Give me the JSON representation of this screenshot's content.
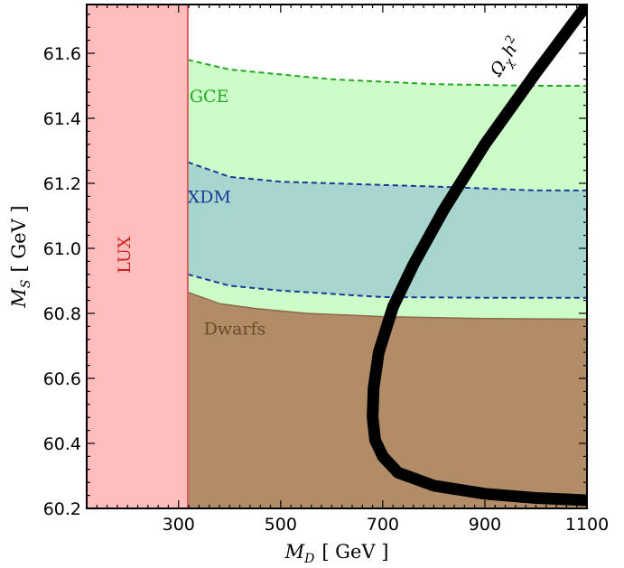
{
  "chart_data": {
    "type": "area",
    "xlabel": "M_D [ GeV ]",
    "ylabel": "M_S [ GeV ]",
    "xlabel_parts": {
      "symbol": "M",
      "sub": "D",
      "unit": "[ GeV ]"
    },
    "ylabel_parts": {
      "symbol": "M",
      "sub": "S",
      "unit": "[ GeV ]"
    },
    "xlim": [
      120,
      1100
    ],
    "ylim": [
      60.2,
      61.75
    ],
    "xticks": [
      {
        "value": 300,
        "label": "300"
      },
      {
        "value": 500,
        "label": "500"
      },
      {
        "value": 700,
        "label": "700"
      },
      {
        "value": 900,
        "label": "900"
      },
      {
        "value": 1100,
        "label": "1100"
      }
    ],
    "yticks": [
      {
        "value": 60.2,
        "label": "60.2"
      },
      {
        "value": 60.4,
        "label": "60.4"
      },
      {
        "value": 60.6,
        "label": "60.6"
      },
      {
        "value": 60.8,
        "label": "60.8"
      },
      {
        "value": 61.0,
        "label": "61.0"
      },
      {
        "value": 61.2,
        "label": "61.2"
      },
      {
        "value": 61.4,
        "label": "61.4"
      },
      {
        "value": 61.6,
        "label": "61.6"
      }
    ],
    "regions": [
      {
        "name": "GCE",
        "fill": "#ccfcc8",
        "edge": "#22aa22",
        "label_at": [
          360,
          61.45
        ],
        "label_color": "#22aa22",
        "lower": [
          [
            318,
            60.86
          ],
          [
            400,
            60.82
          ],
          [
            600,
            60.79
          ],
          [
            800,
            60.78
          ],
          [
            1100,
            60.78
          ]
        ],
        "upper": [
          [
            318,
            61.58
          ],
          [
            400,
            61.55
          ],
          [
            600,
            61.52
          ],
          [
            800,
            61.505
          ],
          [
            1000,
            61.5
          ],
          [
            1100,
            61.5
          ]
        ]
      },
      {
        "name": "XDM",
        "fill": "#a7d6ce",
        "edge": "#1a3a9a",
        "label_at": [
          360,
          61.14
        ],
        "label_color": "#1a3a9a",
        "lower": [
          [
            318,
            60.92
          ],
          [
            400,
            60.885
          ],
          [
            500,
            60.87
          ],
          [
            600,
            60.86
          ],
          [
            700,
            60.85
          ],
          [
            900,
            60.848
          ],
          [
            1100,
            60.848
          ]
        ],
        "upper": [
          [
            318,
            61.265
          ],
          [
            400,
            61.22
          ],
          [
            500,
            61.205
          ],
          [
            600,
            61.2
          ],
          [
            800,
            61.19
          ],
          [
            1000,
            61.178
          ],
          [
            1100,
            61.178
          ]
        ]
      },
      {
        "name": "Dwarfs",
        "fill": "#b28c67",
        "edge": "#8a6a4a",
        "label_at": [
          410,
          60.735
        ],
        "label_color": "#6b4a2a",
        "upper": [
          [
            318,
            60.865
          ],
          [
            380,
            60.83
          ],
          [
            450,
            60.815
          ],
          [
            550,
            60.8
          ],
          [
            700,
            60.79
          ],
          [
            900,
            60.784
          ],
          [
            1100,
            60.782
          ]
        ]
      },
      {
        "name": "LUX",
        "fill": "#ffbdbd",
        "edge": "#d96060",
        "label_at": [
          205,
          60.98
        ],
        "label_color": "#cc2222",
        "x_max": 318
      }
    ],
    "relic_curve": {
      "name": "Ω_χ h^2",
      "label_parts": {
        "omega": "Ω",
        "chi": "χ",
        "h": "h",
        "exp": "2"
      },
      "label_at": [
        950,
        61.58
      ],
      "color": "#000000",
      "x": [
        1100,
        1000,
        900,
        820,
        760,
        720,
        692,
        682,
        680,
        685,
        700,
        730,
        800,
        900,
        1000,
        1100
      ],
      "y": [
        61.75,
        61.54,
        61.32,
        61.12,
        60.95,
        60.82,
        60.68,
        60.57,
        60.48,
        60.41,
        60.36,
        60.31,
        60.27,
        60.245,
        60.232,
        60.225
      ]
    }
  }
}
